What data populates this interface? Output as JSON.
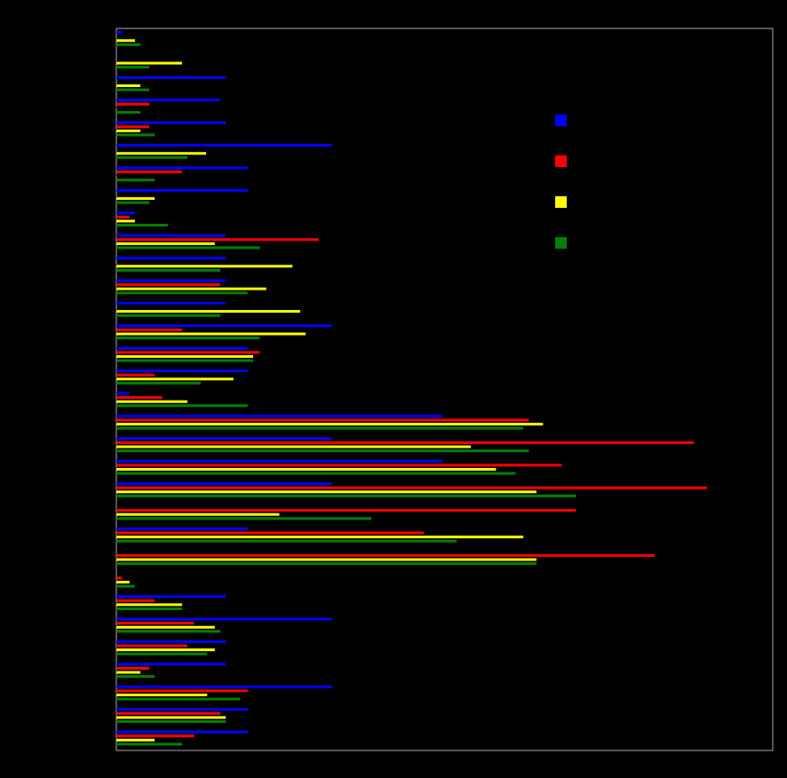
{
  "chart_data": {
    "type": "barh",
    "categories": [
      null,
      null,
      null,
      null,
      null,
      null,
      null,
      null,
      null,
      null,
      null,
      null,
      null,
      null,
      null,
      null,
      null,
      null,
      null,
      null,
      null,
      null,
      null,
      null,
      null,
      null,
      null,
      null,
      null,
      null,
      null,
      null
    ],
    "xlim": [
      0,
      30
    ],
    "series": [
      {
        "color": "#0000ff",
        "values": [
          0.25,
          0,
          5,
          4.75,
          5,
          9.85,
          6,
          6,
          0.85,
          5,
          5,
          5,
          5,
          9.85,
          6,
          6,
          0.6,
          14.9,
          9.85,
          14.9,
          9.85,
          0,
          6,
          0,
          0,
          5,
          9.85,
          5,
          5,
          9.85,
          6,
          6
        ]
      },
      {
        "color": "#ff0000",
        "values": [
          0,
          0,
          0,
          1.5,
          1.5,
          0,
          3,
          0,
          0.6,
          9.25,
          0,
          4.75,
          0,
          3,
          6.55,
          1.75,
          2.1,
          18.85,
          26.4,
          20.35,
          27,
          21,
          14.05,
          24.6,
          0.25,
          1.75,
          3.55,
          3.25,
          1.5,
          6,
          4.75,
          3.55
        ]
      },
      {
        "color": "#ffff00",
        "values": [
          0.85,
          3,
          1.1,
          0,
          1.1,
          4.1,
          0,
          1.75,
          0.85,
          4.5,
          8.05,
          6.85,
          8.4,
          8.65,
          6.25,
          5.35,
          3.25,
          19.5,
          16.2,
          17.35,
          19.2,
          7.45,
          18.6,
          19.2,
          0.6,
          3,
          4.5,
          4.5,
          1.1,
          4.15,
          5,
          1.75
        ]
      },
      {
        "color": "#008000",
        "values": [
          1.1,
          1.5,
          1.5,
          1.1,
          1.75,
          3.25,
          1.75,
          1.5,
          2.35,
          6.55,
          4.75,
          6,
          4.75,
          6.55,
          6.25,
          3.85,
          6,
          18.6,
          18.85,
          18.25,
          21,
          11.65,
          15.55,
          19.2,
          0.85,
          3,
          4.75,
          4.15,
          1.75,
          5.65,
          5,
          3
        ]
      }
    ]
  }
}
